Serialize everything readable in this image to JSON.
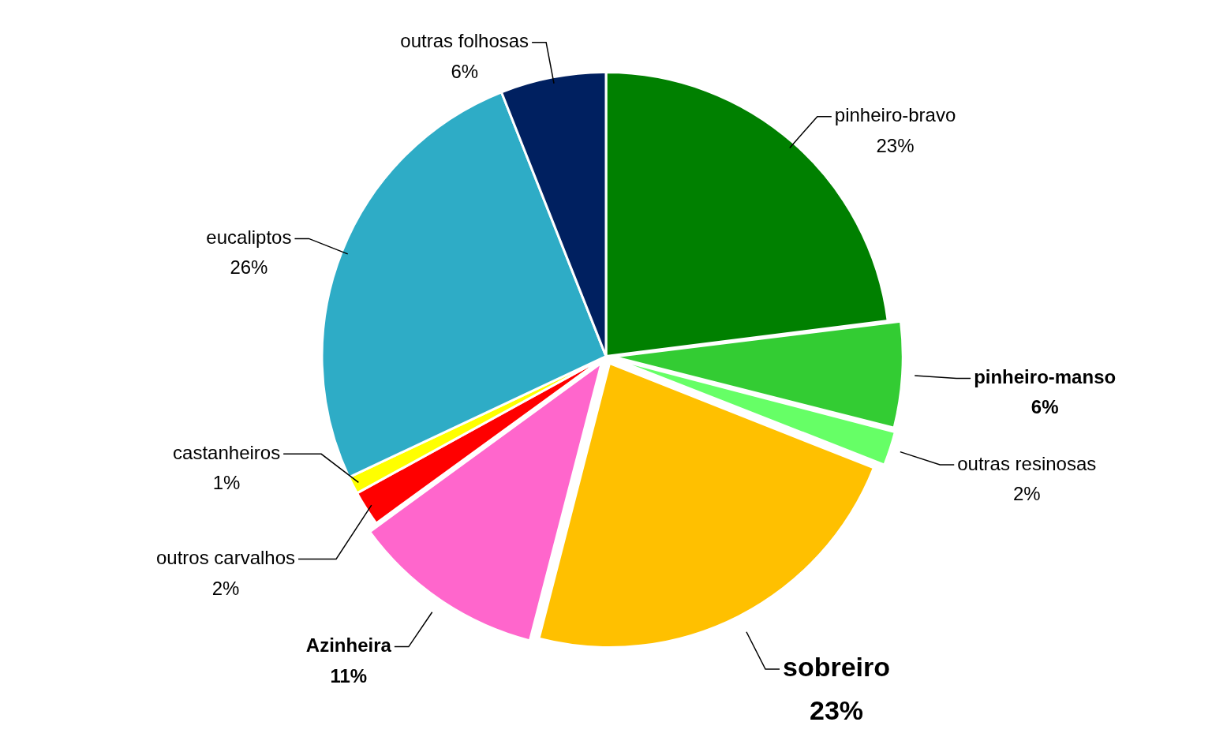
{
  "chart_data": {
    "type": "pie",
    "categories": [
      "pinheiro-bravo",
      "pinheiro-manso",
      "outras resinosas",
      "sobreiro",
      "Azinheira",
      "outros carvalhos",
      "castanheiros",
      "eucaliptos",
      "outras folhosas"
    ],
    "values": [
      23,
      6,
      2,
      23,
      11,
      2,
      1,
      26,
      6
    ],
    "value_labels": [
      "23%",
      "6%",
      "2%",
      "23%",
      "11%",
      "2%",
      "1%",
      "26%",
      "6%"
    ],
    "colors": [
      "#008000",
      "#33cc33",
      "#66ff66",
      "#ffc000",
      "#ff66cc",
      "#ff0000",
      "#ffff00",
      "#2eacc6",
      "#002060"
    ],
    "legend": false
  }
}
